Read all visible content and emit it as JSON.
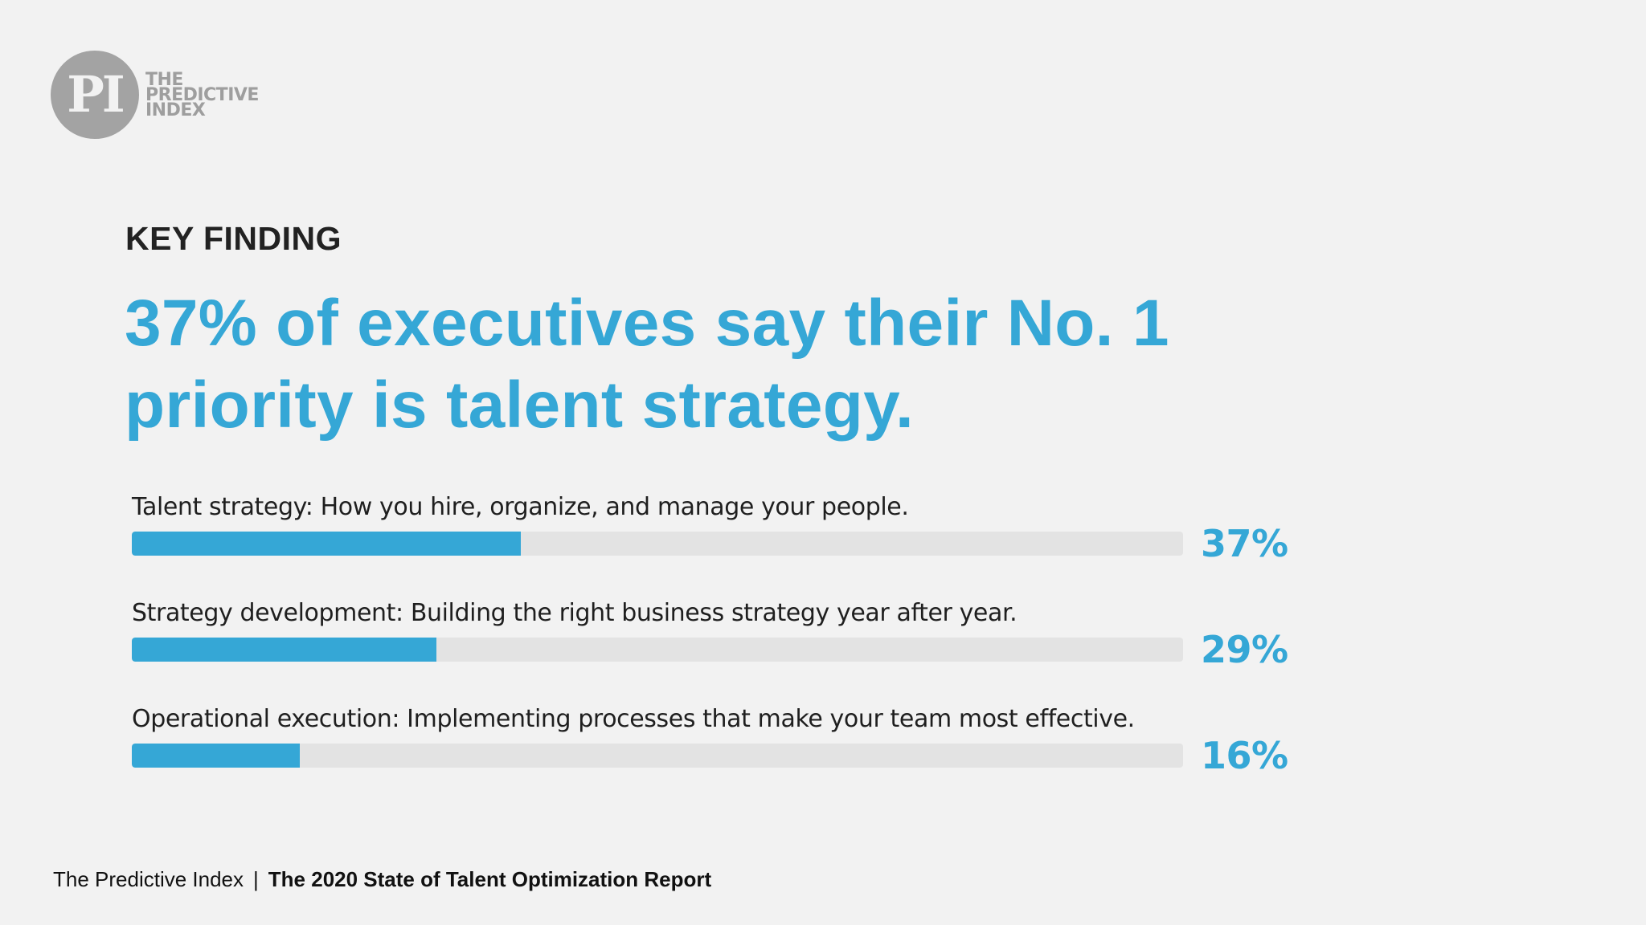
{
  "logo": {
    "mark": "PI",
    "lines": [
      "THE",
      "PREDICTIVE",
      "INDEX"
    ],
    "circle_color": "#a3a3a3"
  },
  "eyebrow": "KEY FINDING",
  "headline": "37% of executives say their No. 1 priority is talent strategy.",
  "colors": {
    "accent": "#35a7d6",
    "track": "#e3e3e3",
    "background": "#f2f2f2"
  },
  "chart_data": {
    "type": "bar",
    "orientation": "horizontal",
    "categories": [
      "Talent strategy: How you hire, organize, and manage your people.",
      "Strategy development: Building the right business strategy year after year.",
      "Operational execution: Implementing processes that make your team most effective."
    ],
    "values": [
      37,
      29,
      16
    ],
    "value_labels": [
      "37%",
      "29%",
      "16%"
    ],
    "xlim": [
      0,
      100
    ],
    "grid": false,
    "legend": "none"
  },
  "footer": {
    "publisher": "The Predictive Index",
    "separator": "|",
    "report": "The 2020 State of Talent Optimization Report"
  }
}
